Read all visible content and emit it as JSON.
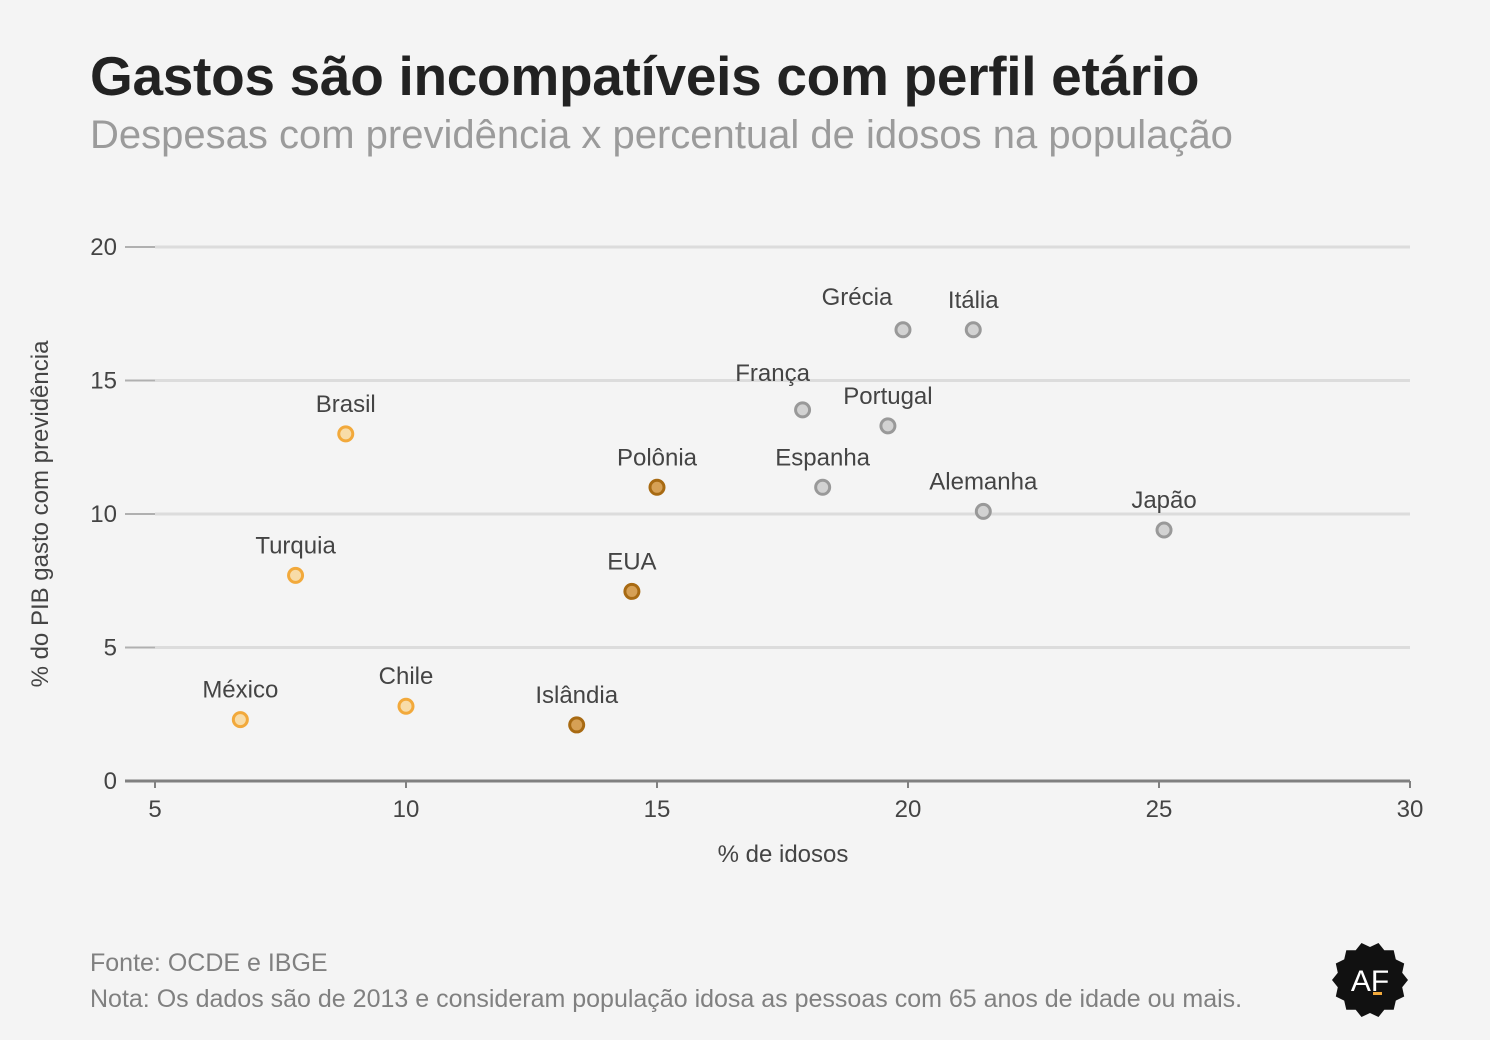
{
  "chart_data": {
    "type": "scatter",
    "title": "Gastos são incompatíveis com perfil etário",
    "subtitle": "Despesas com previdência x percentual de idosos na população",
    "xlabel": "% de idosos",
    "ylabel": "% do PIB gasto com previdência",
    "xlim": [
      5,
      30
    ],
    "ylim": [
      0,
      20
    ],
    "xticks": [
      5,
      10,
      15,
      20,
      25,
      30
    ],
    "yticks": [
      0,
      5,
      10,
      15,
      20
    ],
    "grid": true,
    "points": [
      {
        "label": "Brasil",
        "x": 8.8,
        "y": 13.0,
        "color": "#f2a93b",
        "fill": "#f8dca8"
      },
      {
        "label": "Turquia",
        "x": 7.8,
        "y": 7.7,
        "color": "#f2a93b",
        "fill": "#f8dca8"
      },
      {
        "label": "México",
        "x": 6.7,
        "y": 2.3,
        "color": "#f2a93b",
        "fill": "#f8dca8"
      },
      {
        "label": "Chile",
        "x": 10.0,
        "y": 2.8,
        "color": "#f2a93b",
        "fill": "#f8dca8"
      },
      {
        "label": "Polônia",
        "x": 15.0,
        "y": 11.0,
        "color": "#a86a12",
        "fill": "#d6a055"
      },
      {
        "label": "EUA",
        "x": 14.5,
        "y": 7.1,
        "color": "#a86a12",
        "fill": "#d6a055"
      },
      {
        "label": "Islândia",
        "x": 13.4,
        "y": 2.1,
        "color": "#a86a12",
        "fill": "#d6a055"
      },
      {
        "label": "Grécia",
        "x": 19.9,
        "y": 16.9,
        "color": "#999999",
        "fill": "#d2d2d2"
      },
      {
        "label": "Itália",
        "x": 21.3,
        "y": 16.9,
        "color": "#999999",
        "fill": "#d2d2d2"
      },
      {
        "label": "França",
        "x": 17.9,
        "y": 13.9,
        "color": "#999999",
        "fill": "#d2d2d2"
      },
      {
        "label": "Portugal",
        "x": 19.6,
        "y": 13.3,
        "color": "#999999",
        "fill": "#d2d2d2"
      },
      {
        "label": "Espanha",
        "x": 18.3,
        "y": 11.0,
        "color": "#999999",
        "fill": "#d2d2d2"
      },
      {
        "label": "Alemanha",
        "x": 21.5,
        "y": 10.1,
        "color": "#999999",
        "fill": "#d2d2d2"
      },
      {
        "label": "Japão",
        "x": 25.1,
        "y": 9.4,
        "color": "#999999",
        "fill": "#d2d2d2"
      }
    ]
  },
  "footer": {
    "source": "Fonte: OCDE e IBGE",
    "note": "Nota: Os dados são de 2013 e consideram população idosa as pessoas com 65 anos de idade ou mais."
  },
  "logo": {
    "text": "AF",
    "color": "#111111",
    "accent": "#f2a93b"
  }
}
